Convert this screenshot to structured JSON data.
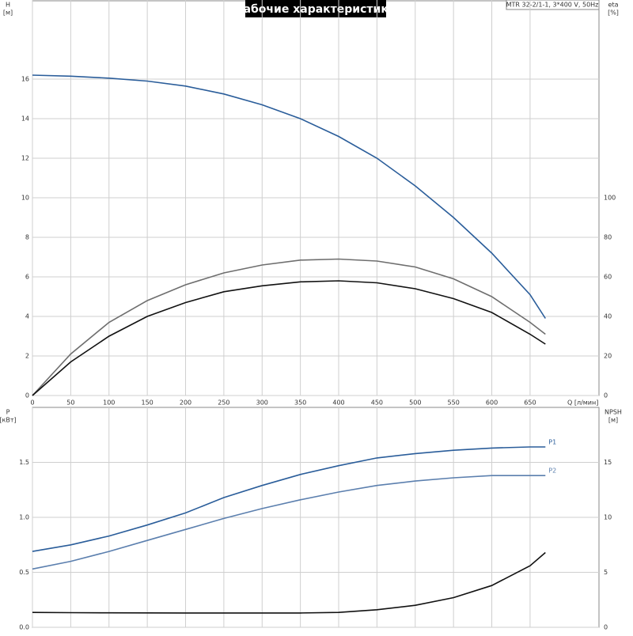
{
  "chart_data": [
    {
      "type": "line",
      "title": "Рабочие характеристики",
      "subtitle": "MTR 32-2/1-1, 3*400 V, 50Hz",
      "x_label": "Q [л/мин]",
      "y_label": "H",
      "y_unit": "[м]",
      "y2_label": "eta",
      "y2_unit": "[%]",
      "x": [
        0,
        50,
        100,
        150,
        200,
        250,
        300,
        350,
        400,
        450,
        500,
        550,
        600,
        650,
        670
      ],
      "xlim": [
        0,
        740
      ],
      "xticks": [
        0,
        50,
        100,
        150,
        200,
        250,
        300,
        350,
        400,
        450,
        500,
        550,
        600,
        650
      ],
      "ylim": [
        0,
        20
      ],
      "yticks": [
        0,
        2,
        4,
        6,
        8,
        10,
        12,
        14,
        16
      ],
      "y2lim": [
        0,
        200
      ],
      "y2ticks": [
        0,
        20,
        40,
        60,
        80,
        100
      ],
      "grid": true,
      "series": [
        {
          "color": "#2a5d9a",
          "axis": "y",
          "values": [
            16.2,
            16.15,
            16.05,
            15.9,
            15.65,
            15.25,
            14.7,
            14.0,
            13.1,
            12.0,
            10.6,
            9.0,
            7.2,
            5.1,
            3.9
          ]
        },
        {
          "color": "#6e6e6e",
          "axis": "y2",
          "values": [
            0,
            21,
            37,
            48,
            56,
            62,
            66,
            68.5,
            69,
            68,
            65,
            59,
            50,
            37,
            31
          ]
        },
        {
          "color": "#111111",
          "axis": "y2",
          "values": [
            0,
            17,
            30,
            40,
            47,
            52.5,
            55.5,
            57.5,
            58,
            57,
            54,
            49,
            42,
            31,
            26
          ]
        }
      ]
    },
    {
      "type": "line",
      "y_label": "P",
      "y_unit": "[кВт]",
      "y2_label": "NPSH",
      "y2_unit": "[м]",
      "x": [
        0,
        50,
        100,
        150,
        200,
        250,
        300,
        350,
        400,
        450,
        500,
        550,
        600,
        650,
        670
      ],
      "xlim": [
        0,
        740
      ],
      "xticks": [
        0,
        50,
        100,
        150,
        200,
        250,
        300,
        350,
        400,
        450,
        500,
        550,
        600,
        650
      ],
      "ylim": [
        0,
        2
      ],
      "yticks": [
        {
          "value": 0,
          "label": "0.0"
        },
        0.5,
        {
          "value": 1,
          "label": "1.0"
        },
        1.5
      ],
      "y2lim": [
        0,
        20
      ],
      "y2ticks": [
        0,
        5,
        10,
        15
      ],
      "grid": true,
      "series": [
        {
          "name": "P1",
          "color": "#2a5d9a",
          "axis": "y",
          "values": [
            0.69,
            0.75,
            0.83,
            0.93,
            1.04,
            1.18,
            1.29,
            1.39,
            1.47,
            1.54,
            1.58,
            1.61,
            1.63,
            1.64,
            1.64
          ]
        },
        {
          "name": "P2",
          "color": "#5b7fae",
          "axis": "y",
          "values": [
            0.53,
            0.6,
            0.69,
            0.79,
            0.89,
            0.99,
            1.08,
            1.16,
            1.23,
            1.29,
            1.33,
            1.36,
            1.38,
            1.38,
            1.38
          ]
        },
        {
          "color": "#111111",
          "axis": "y2",
          "values": [
            1.35,
            1.33,
            1.32,
            1.31,
            1.3,
            1.3,
            1.3,
            1.3,
            1.35,
            1.6,
            2.0,
            2.7,
            3.8,
            5.6,
            6.8
          ]
        }
      ]
    }
  ]
}
